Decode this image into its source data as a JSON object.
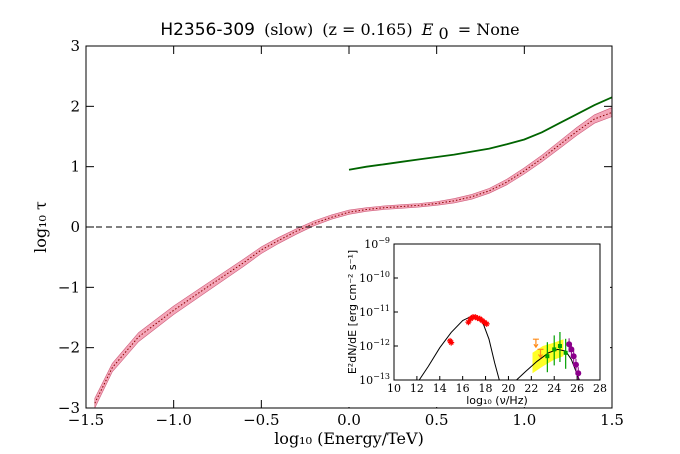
{
  "chart_data": [
    {
      "type": "line",
      "title": {
        "source": "H2356-309",
        "model": "(slow)",
        "redshift": "(z = 0.165)",
        "e0_symbol": "E",
        "e0_sub": "0",
        "e0_value": "= None"
      },
      "xlabel": "log₁₀ (Energy/TeV)",
      "ylabel": "log₁₀ τ",
      "xlim": [
        -1.5,
        1.5
      ],
      "ylim": [
        -3,
        3
      ],
      "xticks": [
        {
          "v": -1.5,
          "label": "−1.5"
        },
        {
          "v": -1.0,
          "label": "−1.0"
        },
        {
          "v": -0.5,
          "label": "−0.5"
        },
        {
          "v": 0.0,
          "label": "0.0"
        },
        {
          "v": 0.5,
          "label": "0.5"
        },
        {
          "v": 1.0,
          "label": "1.0"
        },
        {
          "v": 1.5,
          "label": "1.5"
        }
      ],
      "yticks": [
        {
          "v": 3,
          "label": "3"
        },
        {
          "v": 2,
          "label": "2"
        },
        {
          "v": 1,
          "label": "1"
        },
        {
          "v": 0,
          "label": "0"
        },
        {
          "v": -1,
          "label": "−1"
        },
        {
          "v": -2,
          "label": "−2"
        },
        {
          "v": -3,
          "label": "−3"
        }
      ],
      "reference_line": {
        "y": 0,
        "style": "dashed",
        "color": "#000000"
      },
      "series": [
        {
          "name": "optical depth band",
          "style": "band",
          "color": "#f4a6b8",
          "x": [
            -1.45,
            -1.35,
            -1.2,
            -1.0,
            -0.8,
            -0.6,
            -0.5,
            -0.4,
            -0.3,
            -0.2,
            -0.1,
            0.0,
            0.1,
            0.2,
            0.3,
            0.4,
            0.5,
            0.6,
            0.7,
            0.8,
            0.9,
            1.0,
            1.1,
            1.2,
            1.3,
            1.4,
            1.5
          ],
          "lower": [
            -3.0,
            -2.4,
            -1.9,
            -1.45,
            -1.05,
            -0.65,
            -0.44,
            -0.27,
            -0.12,
            0.02,
            0.13,
            0.21,
            0.26,
            0.29,
            0.31,
            0.33,
            0.36,
            0.4,
            0.46,
            0.56,
            0.7,
            0.88,
            1.08,
            1.3,
            1.52,
            1.72,
            1.83
          ],
          "upper": [
            -2.84,
            -2.26,
            -1.75,
            -1.31,
            -0.92,
            -0.53,
            -0.33,
            -0.17,
            -0.03,
            0.1,
            0.2,
            0.28,
            0.32,
            0.35,
            0.37,
            0.39,
            0.42,
            0.47,
            0.54,
            0.64,
            0.79,
            0.98,
            1.19,
            1.42,
            1.65,
            1.86,
            1.98
          ]
        },
        {
          "name": "optical depth median",
          "style": "dotted",
          "color": "#8b0000",
          "x": [
            -1.45,
            -1.35,
            -1.2,
            -1.0,
            -0.8,
            -0.6,
            -0.5,
            -0.4,
            -0.3,
            -0.2,
            -0.1,
            0.0,
            0.1,
            0.2,
            0.3,
            0.4,
            0.5,
            0.6,
            0.7,
            0.8,
            0.9,
            1.0,
            1.1,
            1.2,
            1.3,
            1.4,
            1.5
          ],
          "y": [
            -2.92,
            -2.33,
            -1.82,
            -1.38,
            -0.98,
            -0.59,
            -0.38,
            -0.22,
            -0.07,
            0.06,
            0.16,
            0.245,
            0.29,
            0.32,
            0.34,
            0.36,
            0.39,
            0.435,
            0.5,
            0.6,
            0.745,
            0.93,
            1.135,
            1.36,
            1.585,
            1.79,
            1.9
          ]
        },
        {
          "name": "upper limit curve",
          "style": "solid",
          "color": "#006400",
          "x": [
            0.0,
            0.1,
            0.2,
            0.3,
            0.4,
            0.5,
            0.6,
            0.7,
            0.8,
            0.9,
            1.0,
            1.1,
            1.2,
            1.3,
            1.4,
            1.5
          ],
          "y": [
            0.95,
            1.0,
            1.04,
            1.08,
            1.12,
            1.16,
            1.2,
            1.25,
            1.3,
            1.37,
            1.45,
            1.57,
            1.72,
            1.87,
            2.02,
            2.15
          ]
        }
      ]
    },
    {
      "type": "scatter",
      "xlabel": "log₁₀ (ν/Hz)",
      "ylabel": "E²dN/dE [erg cm⁻² s⁻¹]",
      "xlim": [
        10,
        28
      ],
      "ylim_log10": [
        -13,
        -9
      ],
      "xticks": [
        {
          "v": 10,
          "label": "10"
        },
        {
          "v": 12,
          "label": "12"
        },
        {
          "v": 14,
          "label": "14"
        },
        {
          "v": 16,
          "label": "16"
        },
        {
          "v": 18,
          "label": "18"
        },
        {
          "v": 20,
          "label": "20"
        },
        {
          "v": 22,
          "label": "22"
        },
        {
          "v": 24,
          "label": "24"
        },
        {
          "v": 26,
          "label": "26"
        },
        {
          "v": 28,
          "label": "28"
        }
      ],
      "yticks": [
        {
          "v": -9,
          "base": "10",
          "exp": "−9"
        },
        {
          "v": -10,
          "base": "10",
          "exp": "−10"
        },
        {
          "v": -11,
          "base": "10",
          "exp": "−11"
        },
        {
          "v": -12,
          "base": "10",
          "exp": "−12"
        },
        {
          "v": -13,
          "base": "10",
          "exp": "−13"
        }
      ],
      "series": [
        {
          "name": "synchrotron model",
          "style": "line",
          "color": "#000000",
          "x": [
            12.2,
            13.0,
            14.0,
            15.0,
            16.0,
            16.8,
            17.3,
            17.8,
            18.3,
            18.8,
            19.2
          ],
          "y": [
            -13.0,
            -12.6,
            -12.05,
            -11.6,
            -11.25,
            -11.12,
            -11.15,
            -11.35,
            -11.8,
            -12.5,
            -13.0
          ]
        },
        {
          "name": "inverse compton model",
          "style": "line",
          "color": "#000000",
          "x": [
            20.7,
            21.5,
            22.5,
            23.5,
            24.3,
            25.0,
            25.5,
            25.9,
            26.2
          ],
          "y": [
            -13.0,
            -12.75,
            -12.45,
            -12.2,
            -12.1,
            -12.15,
            -12.4,
            -12.75,
            -13.0
          ]
        },
        {
          "name": "optical-xray data",
          "style": "markers",
          "color": "#ff0000",
          "x": [
            14.9,
            15.0,
            16.5,
            16.7,
            16.9,
            17.1,
            17.3,
            17.5,
            17.7,
            17.9,
            18.1
          ],
          "y": [
            -11.85,
            -11.9,
            -11.3,
            -11.2,
            -11.15,
            -11.15,
            -11.18,
            -11.2,
            -11.25,
            -11.3,
            -11.35
          ]
        },
        {
          "name": "fermi upper limits",
          "style": "markers",
          "color": "#ff8c1a",
          "x": [
            22.4,
            22.8
          ],
          "y": [
            -11.8,
            -12.1
          ]
        },
        {
          "name": "fermi band",
          "style": "band",
          "color": "#ffff00",
          "x": [
            22.1,
            23.0,
            24.0,
            24.8
          ],
          "lower": [
            -12.8,
            -12.6,
            -12.4,
            -12.3
          ],
          "upper": [
            -12.2,
            -12.0,
            -11.9,
            -11.8
          ]
        },
        {
          "name": "fermi data",
          "style": "markers",
          "color": "#00a000",
          "x": [
            23.4,
            24.0,
            24.5,
            25.0
          ],
          "y": [
            -12.3,
            -12.1,
            -12.0,
            -12.2
          ]
        },
        {
          "name": "hess data",
          "style": "markers",
          "color": "#8b008b",
          "x": [
            25.3,
            25.5,
            25.7,
            25.9,
            26.1
          ],
          "y": [
            -11.95,
            -12.1,
            -12.3,
            -12.55,
            -12.8
          ]
        }
      ]
    }
  ]
}
